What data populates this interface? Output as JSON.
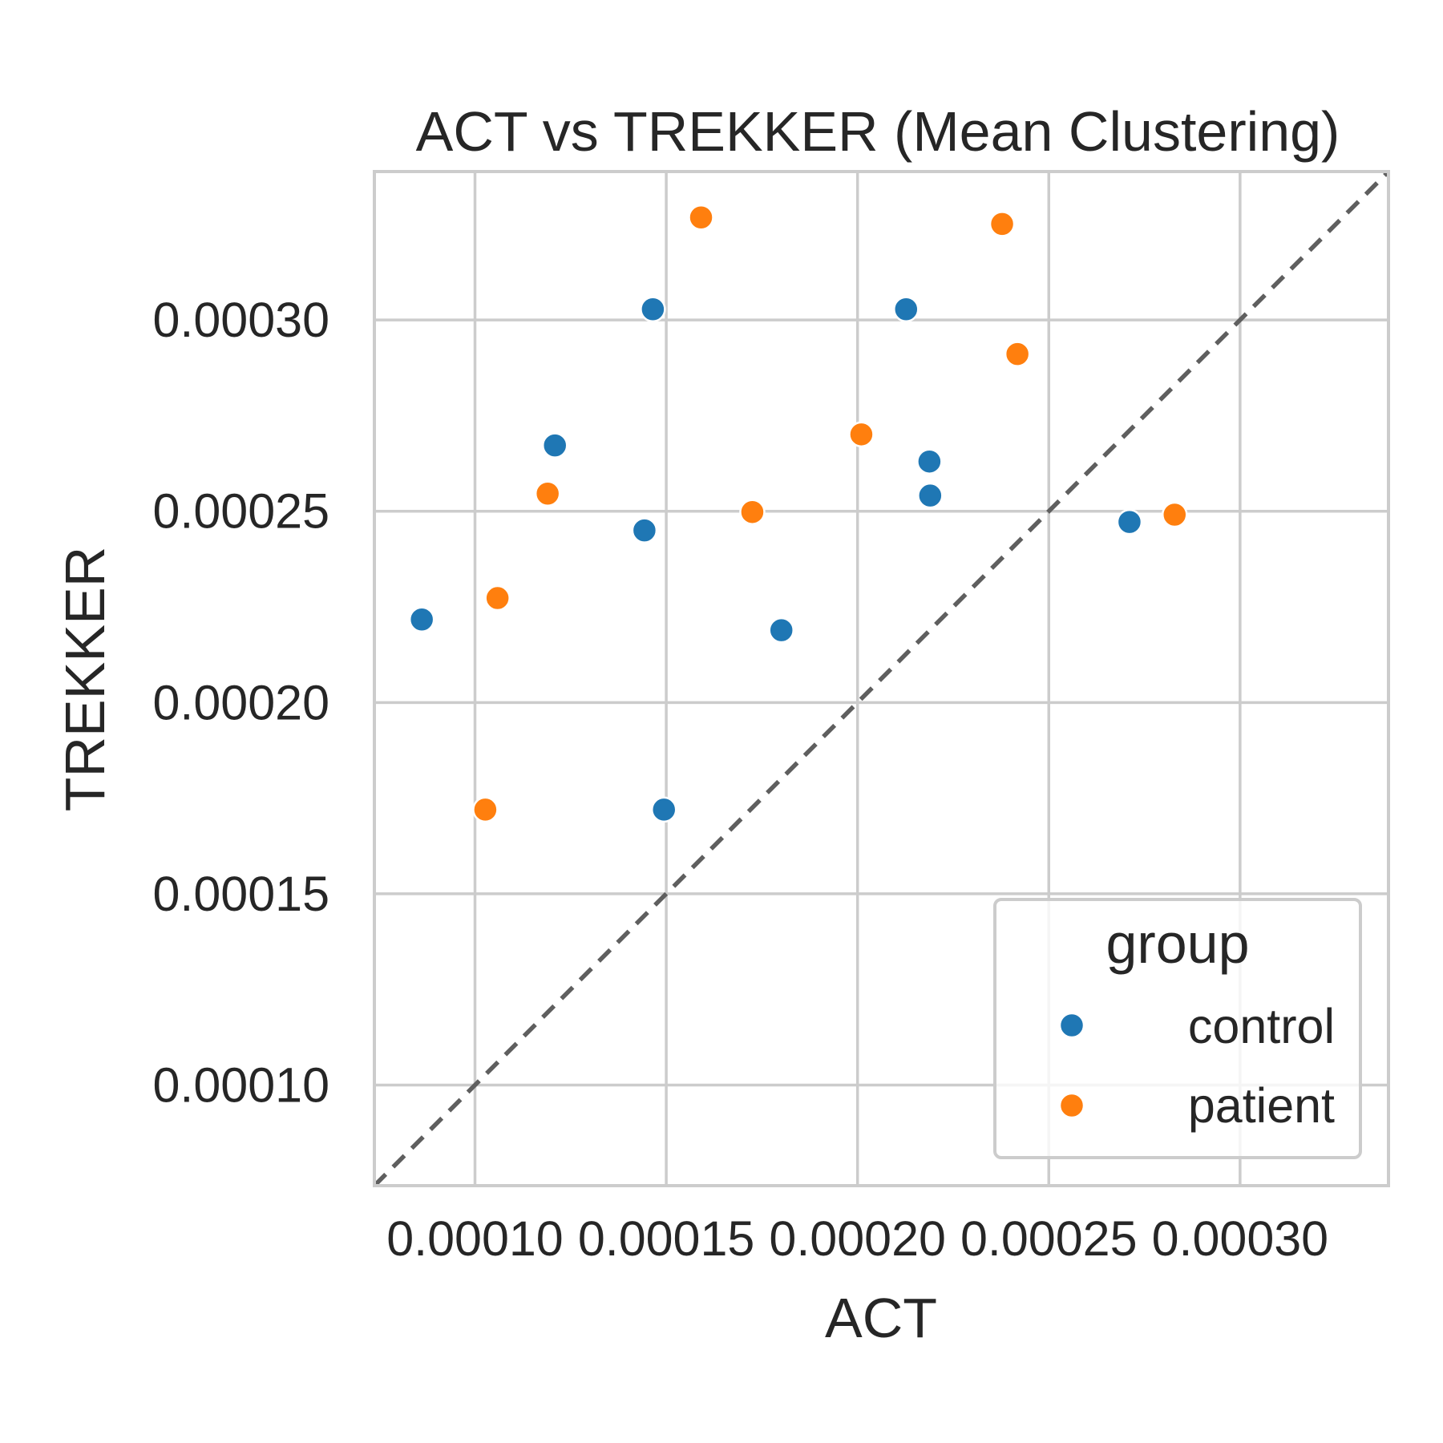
{
  "chart_data": {
    "type": "scatter",
    "title": "ACT vs TREKKER (Mean Clustering)",
    "xlabel": "ACT",
    "ylabel": "TREKKER",
    "xlim": [
      7.37e-05,
      0.0003388
    ],
    "ylim": [
      7.37e-05,
      0.0003388
    ],
    "xticks": [
      0.0001,
      0.00015,
      0.0002,
      0.00025,
      0.0003
    ],
    "yticks": [
      0.0001,
      0.00015,
      0.0002,
      0.00025,
      0.0003
    ],
    "xtick_labels": [
      "0.00010",
      "0.00015",
      "0.00020",
      "0.00025",
      "0.00030"
    ],
    "ytick_labels": [
      "0.00010",
      "0.00015",
      "0.00020",
      "0.00025",
      "0.00030"
    ],
    "grid": true,
    "reference_line": "y = x (dashed)",
    "legend": {
      "title": "group",
      "placement": "lower-right"
    },
    "series": [
      {
        "name": "control",
        "color": "#1f77b4",
        "points": [
          {
            "x": 8.61e-05,
            "y": 0.0002217
          },
          {
            "x": 0.0001209,
            "y": 0.0002672
          },
          {
            "x": 0.0001443,
            "y": 0.000245
          },
          {
            "x": 0.0001465,
            "y": 0.0003028
          },
          {
            "x": 0.0001494,
            "y": 0.000172
          },
          {
            "x": 0.0001801,
            "y": 0.0002189
          },
          {
            "x": 0.0002127,
            "y": 0.0003028
          },
          {
            "x": 0.0002188,
            "y": 0.000263
          },
          {
            "x": 0.000219,
            "y": 0.0002541
          },
          {
            "x": 0.0002711,
            "y": 0.0002472
          }
        ]
      },
      {
        "name": "patient",
        "color": "#ff7f0e",
        "points": [
          {
            "x": 0.0001027,
            "y": 0.000172
          },
          {
            "x": 0.0001059,
            "y": 0.0002273
          },
          {
            "x": 0.000119,
            "y": 0.0002546
          },
          {
            "x": 0.0001591,
            "y": 0.0003268
          },
          {
            "x": 0.0001725,
            "y": 0.0002498
          },
          {
            "x": 0.000201,
            "y": 0.0002701
          },
          {
            "x": 0.0002378,
            "y": 0.0003251
          },
          {
            "x": 0.0002418,
            "y": 0.0002911
          },
          {
            "x": 0.0002829,
            "y": 0.0002491
          }
        ]
      }
    ]
  }
}
